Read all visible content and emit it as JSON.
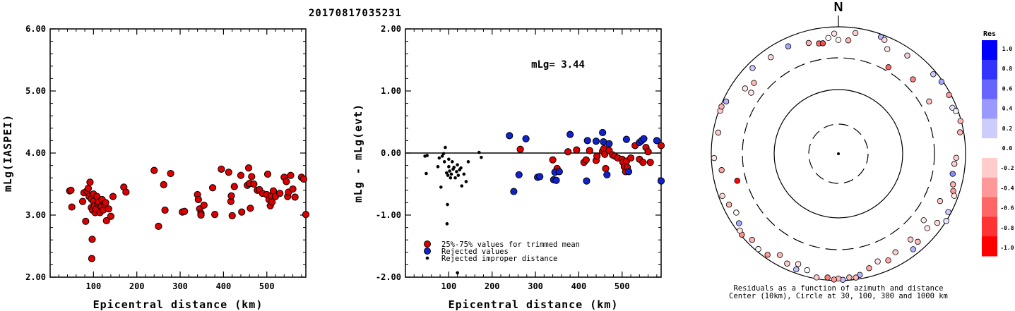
{
  "title": "20170817035231",
  "chart_data": [
    {
      "type": "scatter",
      "ylabel": "mLg(IASPEI)",
      "xlabel": "Epicentral distance (km)",
      "xlim": [
        0,
        590
      ],
      "ylim": [
        2.0,
        6.0
      ],
      "x_ticks": [
        "100",
        "200",
        "300",
        "400",
        "500"
      ],
      "y_ticks": [
        "2.00",
        "3.00",
        "4.00",
        "5.00",
        "6.00"
      ],
      "series": [
        {
          "color": "#dd0000",
          "points": [
            [
              45,
              3.39
            ],
            [
              48,
              3.4
            ],
            [
              50,
              3.13
            ],
            [
              75,
              3.22
            ],
            [
              78,
              3.36
            ],
            [
              82,
              2.9
            ],
            [
              85,
              3.39
            ],
            [
              88,
              3.43
            ],
            [
              90,
              3.3
            ],
            [
              92,
              3.53
            ],
            [
              95,
              3.12
            ],
            [
              95,
              3.26
            ],
            [
              97,
              2.61
            ],
            [
              98,
              3.08
            ],
            [
              100,
              3.34
            ],
            [
              100,
              3.22
            ],
            [
              102,
              3.15
            ],
            [
              104,
              3.04
            ],
            [
              106,
              3.1
            ],
            [
              108,
              3.3
            ],
            [
              110,
              3.18
            ],
            [
              112,
              3.21
            ],
            [
              115,
              3.04
            ],
            [
              118,
              3.14
            ],
            [
              120,
              3.25
            ],
            [
              122,
              3.08
            ],
            [
              125,
              3.17
            ],
            [
              128,
              3.2
            ],
            [
              130,
              2.91
            ],
            [
              135,
              3.1
            ],
            [
              140,
              2.98
            ],
            [
              145,
              3.3
            ],
            [
              170,
              3.45
            ],
            [
              175,
              3.37
            ],
            [
              96,
              2.3
            ],
            [
              240,
              3.72
            ],
            [
              250,
              2.82
            ],
            [
              262,
              3.49
            ],
            [
              265,
              3.08
            ],
            [
              278,
              3.67
            ],
            [
              305,
              3.05
            ],
            [
              310,
              3.06
            ],
            [
              340,
              3.33
            ],
            [
              342,
              3.25
            ],
            [
              345,
              3.1
            ],
            [
              348,
              3.03
            ],
            [
              348,
              3.0
            ],
            [
              355,
              3.16
            ],
            [
              375,
              3.44
            ],
            [
              380,
              3.01
            ],
            [
              395,
              3.74
            ],
            [
              412,
              3.69
            ],
            [
              417,
              3.22
            ],
            [
              418,
              3.31
            ],
            [
              420,
              2.99
            ],
            [
              425,
              3.46
            ],
            [
              440,
              3.64
            ],
            [
              442,
              3.05
            ],
            [
              455,
              3.48
            ],
            [
              458,
              3.76
            ],
            [
              460,
              3.51
            ],
            [
              462,
              3.11
            ],
            [
              465,
              3.62
            ],
            [
              470,
              3.5
            ],
            [
              478,
              3.4
            ],
            [
              483,
              3.41
            ],
            [
              490,
              3.35
            ],
            [
              500,
              3.33
            ],
            [
              502,
              3.66
            ],
            [
              505,
              3.25
            ],
            [
              508,
              3.15
            ],
            [
              510,
              3.31
            ],
            [
              512,
              3.21
            ],
            [
              515,
              3.39
            ],
            [
              520,
              3.3
            ],
            [
              530,
              3.35
            ],
            [
              540,
              3.61
            ],
            [
              545,
              3.54
            ],
            [
              548,
              3.3
            ],
            [
              550,
              3.37
            ],
            [
              555,
              3.64
            ],
            [
              560,
              3.42
            ],
            [
              565,
              3.29
            ],
            [
              580,
              3.61
            ],
            [
              585,
              3.58
            ],
            [
              590,
              3.01
            ]
          ]
        }
      ]
    },
    {
      "type": "scatter",
      "ylabel": "mLg - mLg(evt)",
      "xlabel": "Epicentral distance (km)",
      "annotation": "mLg= 3.44",
      "xlim": [
        0,
        590
      ],
      "ylim": [
        -2.0,
        2.0
      ],
      "x_ticks": [
        "100",
        "200",
        "300",
        "400",
        "500"
      ],
      "y_ticks": [
        "-2.00",
        "-1.00",
        "0.00",
        "1.00",
        "2.00"
      ],
      "reference_line": 0.0,
      "legend": [
        {
          "label": "25%-75% values for trimmed mean",
          "color": "#dd0000",
          "marker": "circle"
        },
        {
          "label": "Rejected values",
          "color": "#1122cc",
          "marker": "circle"
        },
        {
          "label": "Rejected improper distance",
          "color": "#000000",
          "marker": "dot"
        }
      ],
      "series": [
        {
          "name": "25%-75% values for trimmed mean",
          "color": "#dd0000",
          "points": [
            [
              265,
              0.06
            ],
            [
              340,
              -0.11
            ],
            [
              350,
              -0.25
            ],
            [
              375,
              0.02
            ],
            [
              395,
              0.05
            ],
            [
              412,
              -0.15
            ],
            [
              417,
              -0.11
            ],
            [
              425,
              0.04
            ],
            [
              440,
              -0.12
            ],
            [
              442,
              -0.05
            ],
            [
              455,
              0.03
            ],
            [
              458,
              0.07
            ],
            [
              460,
              -0.02
            ],
            [
              462,
              -0.25
            ],
            [
              470,
              0.04
            ],
            [
              478,
              -0.03
            ],
            [
              483,
              -0.05
            ],
            [
              490,
              -0.08
            ],
            [
              500,
              -0.1
            ],
            [
              502,
              -0.15
            ],
            [
              505,
              -0.22
            ],
            [
              508,
              -0.3
            ],
            [
              510,
              -0.13
            ],
            [
              512,
              -0.23
            ],
            [
              520,
              -0.08
            ],
            [
              530,
              0.12
            ],
            [
              540,
              -0.1
            ],
            [
              548,
              -0.15
            ],
            [
              555,
              0.09
            ],
            [
              560,
              0.02
            ],
            [
              565,
              -0.15
            ],
            [
              590,
              0.12
            ]
          ]
        },
        {
          "name": "Rejected values",
          "color": "#1122cc",
          "points": [
            [
              240,
              0.28
            ],
            [
              250,
              -0.62
            ],
            [
              262,
              -0.35
            ],
            [
              278,
              0.23
            ],
            [
              305,
              -0.39
            ],
            [
              310,
              -0.38
            ],
            [
              342,
              -0.43
            ],
            [
              345,
              -0.31
            ],
            [
              348,
              -0.44
            ],
            [
              355,
              -0.3
            ],
            [
              380,
              0.3
            ],
            [
              418,
              -0.45
            ],
            [
              420,
              0.2
            ],
            [
              440,
              0.19
            ],
            [
              455,
              0.33
            ],
            [
              457,
              0.18
            ],
            [
              465,
              -0.35
            ],
            [
              470,
              0.15
            ],
            [
              510,
              0.22
            ],
            [
              515,
              -0.3
            ],
            [
              540,
              0.17
            ],
            [
              545,
              0.2
            ],
            [
              550,
              0.23
            ],
            [
              580,
              0.2
            ],
            [
              590,
              -0.45
            ]
          ]
        },
        {
          "name": "Rejected improper distance",
          "color": "#000000",
          "points": [
            [
              45,
              -0.05
            ],
            [
              48,
              -0.33
            ],
            [
              50,
              -0.04
            ],
            [
              75,
              -0.22
            ],
            [
              78,
              -0.08
            ],
            [
              82,
              -0.55
            ],
            [
              85,
              -0.05
            ],
            [
              88,
              -0.01
            ],
            [
              90,
              -0.14
            ],
            [
              92,
              0.09
            ],
            [
              95,
              -0.32
            ],
            [
              97,
              -0.83
            ],
            [
              98,
              -0.36
            ],
            [
              100,
              -0.1
            ],
            [
              100,
              -0.22
            ],
            [
              102,
              -0.29
            ],
            [
              104,
              -0.4
            ],
            [
              106,
              -0.34
            ],
            [
              108,
              -0.14
            ],
            [
              110,
              -0.26
            ],
            [
              112,
              -0.23
            ],
            [
              115,
              -0.4
            ],
            [
              118,
              -0.3
            ],
            [
              120,
              -0.19
            ],
            [
              122,
              -0.36
            ],
            [
              125,
              -0.27
            ],
            [
              128,
              -0.24
            ],
            [
              130,
              -0.53
            ],
            [
              135,
              -0.34
            ],
            [
              140,
              -0.46
            ],
            [
              145,
              -0.14
            ],
            [
              170,
              0.01
            ],
            [
              175,
              -0.07
            ],
            [
              96,
              -1.14
            ],
            [
              120,
              -1.93
            ]
          ]
        }
      ]
    },
    {
      "type": "scatter",
      "subtype": "polar",
      "north_label": "N",
      "caption_line1": "Residuals as a function of azimuth and distance",
      "caption_line2": "Center (10km), Circle at 30, 100, 300 and 1000 km",
      "colorbar_title": "Res",
      "colorbar_ticks": [
        "1.0",
        "0.8",
        "0.6",
        "0.4",
        "0.2",
        "0.0",
        "-0.2",
        "-0.4",
        "-0.6",
        "-0.8",
        "-1.0"
      ],
      "colorbar_colors": [
        "#0000ff",
        "#3333ff",
        "#6666ff",
        "#9999ff",
        "#ccccff",
        "#ffffff",
        "#ffcccc",
        "#ff9999",
        "#ff6666",
        "#ff3333",
        "#ff0000"
      ],
      "points": [
        [
          0,
          600,
          -0.05
        ],
        [
          8,
          820,
          -0.2
        ],
        [
          20,
          900,
          0.3
        ],
        [
          22,
          850,
          -0.15
        ],
        [
          35,
          760,
          -0.2
        ],
        [
          50,
          880,
          0.2
        ],
        [
          55,
          950,
          0.35
        ],
        [
          62,
          930,
          -0.4
        ],
        [
          68,
          850,
          0.1
        ],
        [
          70,
          920,
          0.05
        ],
        [
          75,
          970,
          -0.3
        ],
        [
          80,
          870,
          -0.3
        ],
        [
          92,
          700,
          -0.2
        ],
        [
          95,
          660,
          -0.2
        ],
        [
          100,
          650,
          0.45
        ],
        [
          105,
          720,
          -0.3
        ],
        [
          108,
          780,
          -0.4
        ],
        [
          110,
          860,
          -0.1
        ],
        [
          118,
          900,
          0.2
        ],
        [
          122,
          1000,
          0.1
        ],
        [
          125,
          780,
          -0.15
        ],
        [
          130,
          650,
          -0.1
        ],
        [
          138,
          720,
          -0.25
        ],
        [
          142,
          800,
          0.3
        ],
        [
          150,
          600,
          -0.2
        ],
        [
          155,
          700,
          -0.35
        ],
        [
          160,
          620,
          -0.1
        ],
        [
          165,
          720,
          -0.35
        ],
        [
          170,
          860,
          0.3
        ],
        [
          172,
          930,
          -0.3
        ],
        [
          175,
          900,
          -0.25
        ],
        [
          178,
          970,
          0.25
        ],
        [
          180,
          920,
          -0.3
        ],
        [
          182,
          960,
          -0.4
        ],
        [
          185,
          900,
          -0.5
        ],
        [
          190,
          950,
          -0.2
        ],
        [
          200,
          860,
          0.25
        ],
        [
          205,
          800,
          -0.2
        ],
        [
          210,
          680,
          -0.3
        ],
        [
          215,
          870,
          -0.4
        ],
        [
          220,
          910,
          0.0
        ],
        [
          225,
          820,
          -0.3
        ],
        [
          230,
          960,
          -0.45
        ],
        [
          232,
          920,
          -0.1
        ],
        [
          235,
          800,
          0.35
        ],
        [
          240,
          700,
          0.0
        ],
        [
          245,
          780,
          -0.3
        ],
        [
          250,
          870,
          -0.15
        ],
        [
          255,
          420,
          -1.0
        ],
        [
          262,
          700,
          -0.35
        ],
        [
          268,
          900,
          -0.1
        ],
        [
          280,
          820,
          -0.2
        ],
        [
          290,
          950,
          -0.2
        ],
        [
          292,
          960,
          -0.3
        ],
        [
          295,
          880,
          0.3
        ],
        [
          305,
          600,
          -0.1
        ],
        [
          310,
          520,
          -0.3
        ],
        [
          315,
          800,
          0.2
        ],
        [
          325,
          700,
          -0.15
        ],
        [
          335,
          720,
          0.35
        ],
        [
          345,
          620,
          -0.3
        ],
        [
          350,
          560,
          -0.6
        ],
        [
          352,
          550,
          -0.7
        ],
        [
          355,
          660,
          0.0
        ],
        [
          358,
          770,
          -0.1
        ],
        [
          5,
          600,
          -0.3
        ],
        [
          25,
          640,
          -0.1
        ],
        [
          30,
          350,
          -0.6
        ],
        [
          45,
          430,
          -0.5
        ],
        [
          60,
          420,
          -0.25
        ],
        [
          115,
          560,
          -0.2
        ],
        [
          128,
          480,
          -0.1
        ],
        [
          140,
          560,
          -0.2
        ],
        [
          195,
          780,
          0.0
        ],
        [
          200,
          690,
          -0.1
        ],
        [
          305,
          450,
          -0.1
        ]
      ]
    }
  ]
}
